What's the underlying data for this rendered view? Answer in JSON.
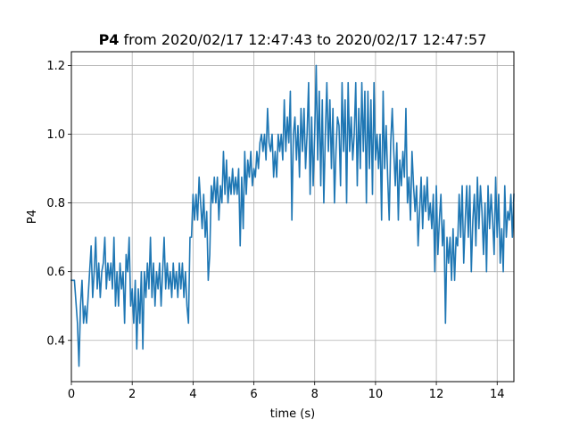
{
  "chart_data": {
    "type": "line",
    "title": {
      "bold": "P4",
      "rest": " from 2020/02/17 12:47:43 to 2020/02/17 12:47:57"
    },
    "xlabel": "time (s)",
    "ylabel": "P4",
    "xlim": [
      0,
      14.55
    ],
    "ylim": [
      0.28,
      1.24
    ],
    "x_ticks": [
      0,
      2,
      4,
      6,
      8,
      10,
      12,
      14
    ],
    "x_tick_labels": [
      "0",
      "2",
      "4",
      "6",
      "8",
      "10",
      "12",
      "14"
    ],
    "y_ticks": [
      0.4,
      0.6,
      0.8,
      1.0,
      1.2
    ],
    "y_tick_labels": [
      "0.4",
      "0.6",
      "0.8",
      "1.0",
      "1.2"
    ],
    "grid": true,
    "line_color": "#1f77b4",
    "series": [
      {
        "points": [
          [
            0.0,
            0.575
          ],
          [
            0.1,
            0.575
          ],
          [
            0.2,
            0.45
          ],
          [
            0.25,
            0.325
          ],
          [
            0.3,
            0.5
          ],
          [
            0.35,
            0.575
          ],
          [
            0.4,
            0.45
          ],
          [
            0.45,
            0.5
          ],
          [
            0.5,
            0.45
          ],
          [
            0.55,
            0.525
          ],
          [
            0.6,
            0.6
          ],
          [
            0.65,
            0.675
          ],
          [
            0.7,
            0.525
          ],
          [
            0.75,
            0.6
          ],
          [
            0.8,
            0.7
          ],
          [
            0.85,
            0.55
          ],
          [
            0.9,
            0.625
          ],
          [
            0.95,
            0.525
          ],
          [
            1.0,
            0.6
          ],
          [
            1.05,
            0.625
          ],
          [
            1.1,
            0.7
          ],
          [
            1.15,
            0.55
          ],
          [
            1.2,
            0.625
          ],
          [
            1.25,
            0.575
          ],
          [
            1.3,
            0.625
          ],
          [
            1.35,
            0.55
          ],
          [
            1.4,
            0.7
          ],
          [
            1.45,
            0.5
          ],
          [
            1.5,
            0.6
          ],
          [
            1.55,
            0.5
          ],
          [
            1.6,
            0.625
          ],
          [
            1.65,
            0.55
          ],
          [
            1.7,
            0.6
          ],
          [
            1.75,
            0.45
          ],
          [
            1.8,
            0.65
          ],
          [
            1.85,
            0.6
          ],
          [
            1.9,
            0.7
          ],
          [
            1.95,
            0.5
          ],
          [
            2.0,
            0.55
          ],
          [
            2.05,
            0.45
          ],
          [
            2.1,
            0.575
          ],
          [
            2.15,
            0.375
          ],
          [
            2.2,
            0.55
          ],
          [
            2.25,
            0.45
          ],
          [
            2.3,
            0.6
          ],
          [
            2.35,
            0.375
          ],
          [
            2.4,
            0.6
          ],
          [
            2.45,
            0.525
          ],
          [
            2.5,
            0.625
          ],
          [
            2.55,
            0.55
          ],
          [
            2.6,
            0.7
          ],
          [
            2.65,
            0.525
          ],
          [
            2.7,
            0.625
          ],
          [
            2.75,
            0.5
          ],
          [
            2.8,
            0.6
          ],
          [
            2.85,
            0.55
          ],
          [
            2.9,
            0.625
          ],
          [
            2.95,
            0.5
          ],
          [
            3.0,
            0.6
          ],
          [
            3.05,
            0.7
          ],
          [
            3.1,
            0.55
          ],
          [
            3.15,
            0.625
          ],
          [
            3.2,
            0.55
          ],
          [
            3.25,
            0.6
          ],
          [
            3.3,
            0.525
          ],
          [
            3.35,
            0.625
          ],
          [
            3.4,
            0.55
          ],
          [
            3.45,
            0.6
          ],
          [
            3.5,
            0.525
          ],
          [
            3.55,
            0.625
          ],
          [
            3.6,
            0.55
          ],
          [
            3.65,
            0.625
          ],
          [
            3.7,
            0.525
          ],
          [
            3.75,
            0.6
          ],
          [
            3.8,
            0.5
          ],
          [
            3.85,
            0.45
          ],
          [
            3.9,
            0.7
          ],
          [
            3.95,
            0.7
          ],
          [
            4.0,
            0.825
          ],
          [
            4.05,
            0.75
          ],
          [
            4.1,
            0.825
          ],
          [
            4.15,
            0.75
          ],
          [
            4.2,
            0.875
          ],
          [
            4.25,
            0.8
          ],
          [
            4.3,
            0.725
          ],
          [
            4.35,
            0.825
          ],
          [
            4.4,
            0.7
          ],
          [
            4.45,
            0.775
          ],
          [
            4.5,
            0.575
          ],
          [
            4.55,
            0.65
          ],
          [
            4.6,
            0.85
          ],
          [
            4.65,
            0.8
          ],
          [
            4.7,
            0.875
          ],
          [
            4.75,
            0.8
          ],
          [
            4.8,
            0.875
          ],
          [
            4.85,
            0.75
          ],
          [
            4.9,
            0.85
          ],
          [
            4.95,
            0.8
          ],
          [
            5.0,
            0.95
          ],
          [
            5.05,
            0.825
          ],
          [
            5.1,
            0.925
          ],
          [
            5.15,
            0.8
          ],
          [
            5.2,
            0.875
          ],
          [
            5.25,
            0.825
          ],
          [
            5.3,
            0.9
          ],
          [
            5.35,
            0.825
          ],
          [
            5.4,
            0.875
          ],
          [
            5.45,
            0.825
          ],
          [
            5.5,
            0.9
          ],
          [
            5.55,
            0.675
          ],
          [
            5.6,
            0.875
          ],
          [
            5.65,
            0.725
          ],
          [
            5.7,
            0.95
          ],
          [
            5.75,
            0.825
          ],
          [
            5.8,
            0.925
          ],
          [
            5.85,
            0.875
          ],
          [
            5.9,
            0.95
          ],
          [
            5.95,
            0.85
          ],
          [
            6.0,
            0.9
          ],
          [
            6.05,
            0.875
          ],
          [
            6.1,
            0.95
          ],
          [
            6.15,
            0.9
          ],
          [
            6.2,
            0.975
          ],
          [
            6.25,
            1.0
          ],
          [
            6.3,
            0.95
          ],
          [
            6.35,
            1.0
          ],
          [
            6.4,
            0.925
          ],
          [
            6.45,
            1.075
          ],
          [
            6.5,
            0.975
          ],
          [
            6.55,
            0.95
          ],
          [
            6.6,
            1.0
          ],
          [
            6.65,
            0.875
          ],
          [
            6.7,
            0.95
          ],
          [
            6.75,
            0.875
          ],
          [
            6.8,
            1.0
          ],
          [
            6.85,
            0.95
          ],
          [
            6.9,
            1.0
          ],
          [
            6.95,
            0.925
          ],
          [
            7.0,
            1.1
          ],
          [
            7.05,
            0.95
          ],
          [
            7.1,
            1.05
          ],
          [
            7.15,
            0.975
          ],
          [
            7.2,
            1.125
          ],
          [
            7.25,
            0.75
          ],
          [
            7.3,
            1.0
          ],
          [
            7.35,
            1.05
          ],
          [
            7.4,
            0.925
          ],
          [
            7.45,
            1.025
          ],
          [
            7.5,
            0.875
          ],
          [
            7.55,
            1.075
          ],
          [
            7.6,
            0.95
          ],
          [
            7.65,
            1.075
          ],
          [
            7.7,
            0.9
          ],
          [
            7.75,
            1.0
          ],
          [
            7.8,
            1.15
          ],
          [
            7.85,
            0.825
          ],
          [
            7.9,
            1.05
          ],
          [
            7.95,
            0.85
          ],
          [
            8.0,
            1.0
          ],
          [
            8.05,
            1.2
          ],
          [
            8.1,
            0.925
          ],
          [
            8.15,
            1.125
          ],
          [
            8.2,
            0.85
          ],
          [
            8.25,
            1.1
          ],
          [
            8.3,
            0.8
          ],
          [
            8.35,
            1.0
          ],
          [
            8.4,
            1.15
          ],
          [
            8.45,
            0.95
          ],
          [
            8.5,
            1.1
          ],
          [
            8.55,
            0.9
          ],
          [
            8.6,
            1.075
          ],
          [
            8.65,
            0.8
          ],
          [
            8.7,
            0.95
          ],
          [
            8.75,
            1.05
          ],
          [
            8.8,
            1.025
          ],
          [
            8.85,
            0.85
          ],
          [
            8.9,
            1.15
          ],
          [
            8.95,
            0.95
          ],
          [
            9.0,
            1.1
          ],
          [
            9.05,
            0.8
          ],
          [
            9.1,
            1.15
          ],
          [
            9.15,
            0.95
          ],
          [
            9.2,
            1.05
          ],
          [
            9.25,
            0.925
          ],
          [
            9.3,
            1.0
          ],
          [
            9.35,
            1.15
          ],
          [
            9.4,
            0.85
          ],
          [
            9.45,
            1.075
          ],
          [
            9.5,
            0.9
          ],
          [
            9.55,
            1.15
          ],
          [
            9.6,
            0.95
          ],
          [
            9.65,
            1.125
          ],
          [
            9.7,
            0.8
          ],
          [
            9.75,
            1.125
          ],
          [
            9.8,
            0.9
          ],
          [
            9.85,
            1.1
          ],
          [
            9.9,
            0.825
          ],
          [
            9.95,
            1.15
          ],
          [
            10.0,
            0.925
          ],
          [
            10.05,
            1.0
          ],
          [
            10.1,
            0.9
          ],
          [
            10.15,
            1.0
          ],
          [
            10.2,
            0.75
          ],
          [
            10.25,
            1.125
          ],
          [
            10.3,
            0.9
          ],
          [
            10.35,
            1.025
          ],
          [
            10.4,
            0.875
          ],
          [
            10.45,
            0.75
          ],
          [
            10.5,
            0.975
          ],
          [
            10.55,
            1.075
          ],
          [
            10.6,
            0.95
          ],
          [
            10.65,
            0.85
          ],
          [
            10.7,
            0.975
          ],
          [
            10.75,
            0.75
          ],
          [
            10.8,
            0.925
          ],
          [
            10.85,
            0.85
          ],
          [
            10.9,
            0.95
          ],
          [
            10.95,
            0.875
          ],
          [
            11.0,
            1.075
          ],
          [
            11.05,
            0.8
          ],
          [
            11.1,
            0.875
          ],
          [
            11.15,
            0.75
          ],
          [
            11.2,
            0.95
          ],
          [
            11.25,
            0.85
          ],
          [
            11.3,
            0.775
          ],
          [
            11.35,
            0.85
          ],
          [
            11.4,
            0.675
          ],
          [
            11.45,
            0.775
          ],
          [
            11.5,
            0.875
          ],
          [
            11.55,
            0.725
          ],
          [
            11.6,
            0.85
          ],
          [
            11.65,
            0.775
          ],
          [
            11.7,
            0.875
          ],
          [
            11.75,
            0.75
          ],
          [
            11.8,
            0.8
          ],
          [
            11.85,
            0.725
          ],
          [
            11.9,
            0.825
          ],
          [
            11.95,
            0.6
          ],
          [
            12.0,
            0.85
          ],
          [
            12.05,
            0.65
          ],
          [
            12.1,
            0.75
          ],
          [
            12.15,
            0.825
          ],
          [
            12.2,
            0.675
          ],
          [
            12.25,
            0.75
          ],
          [
            12.3,
            0.45
          ],
          [
            12.35,
            0.7
          ],
          [
            12.4,
            0.625
          ],
          [
            12.45,
            0.7
          ],
          [
            12.5,
            0.575
          ],
          [
            12.55,
            0.725
          ],
          [
            12.6,
            0.575
          ],
          [
            12.65,
            0.7
          ],
          [
            12.7,
            0.675
          ],
          [
            12.75,
            0.825
          ],
          [
            12.8,
            0.7
          ],
          [
            12.85,
            0.85
          ],
          [
            12.9,
            0.625
          ],
          [
            12.95,
            0.75
          ],
          [
            13.0,
            0.85
          ],
          [
            13.05,
            0.7
          ],
          [
            13.1,
            0.85
          ],
          [
            13.15,
            0.6
          ],
          [
            13.2,
            0.75
          ],
          [
            13.25,
            0.825
          ],
          [
            13.3,
            0.675
          ],
          [
            13.35,
            0.875
          ],
          [
            13.4,
            0.725
          ],
          [
            13.45,
            0.85
          ],
          [
            13.5,
            0.775
          ],
          [
            13.55,
            0.65
          ],
          [
            13.6,
            0.8
          ],
          [
            13.65,
            0.6
          ],
          [
            13.7,
            0.85
          ],
          [
            13.75,
            0.725
          ],
          [
            13.8,
            0.825
          ],
          [
            13.85,
            0.75
          ],
          [
            13.9,
            0.65
          ],
          [
            13.95,
            0.875
          ],
          [
            14.0,
            0.7
          ],
          [
            14.05,
            0.825
          ],
          [
            14.1,
            0.625
          ],
          [
            14.15,
            0.725
          ],
          [
            14.2,
            0.6
          ],
          [
            14.25,
            0.85
          ],
          [
            14.3,
            0.7
          ],
          [
            14.35,
            0.775
          ],
          [
            14.4,
            0.75
          ],
          [
            14.45,
            0.825
          ],
          [
            14.5,
            0.7
          ],
          [
            14.55,
            0.825
          ]
        ]
      }
    ]
  }
}
